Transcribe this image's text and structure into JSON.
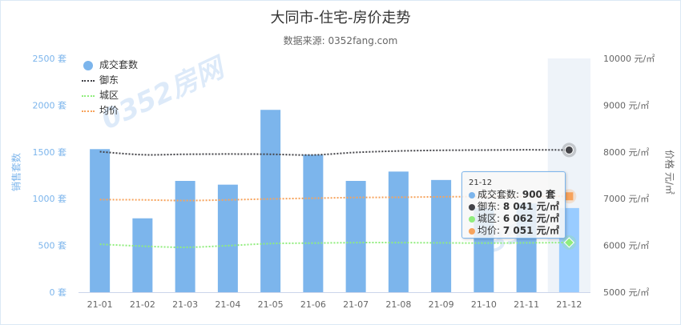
{
  "header": {
    "title": "大同市-住宅-房价走势",
    "subtitle": "数据来源: 0352fang.com"
  },
  "watermark": "0352房网",
  "legend": [
    {
      "label": "成交套数",
      "symbol": "circle",
      "color": "#7cb5ec"
    },
    {
      "label": "御东",
      "symbol": "dotted-line",
      "color": "#434348"
    },
    {
      "label": "城区",
      "symbol": "dotted-line",
      "color": "#90ed7d"
    },
    {
      "label": "均价",
      "symbol": "dotted-line",
      "color": "#f7a35c"
    }
  ],
  "axes": {
    "left_title": "销售套数",
    "right_title": "价格 元/㎡",
    "left_ticks": [
      "0 套",
      "500 套",
      "1000 套",
      "1500 套",
      "2000 套",
      "2500 套"
    ],
    "right_ticks": [
      "5000 元/㎡",
      "6000 元/㎡",
      "7000 元/㎡",
      "8000 元/㎡",
      "9000 元/㎡",
      "10000 元/㎡"
    ]
  },
  "tooltip": {
    "header": "21-12",
    "rows": [
      {
        "label": "成交套数: ",
        "value": "900 套",
        "color": "#7cb5ec"
      },
      {
        "label": "御东: ",
        "value": "8 041 元/㎡",
        "color": "#434348"
      },
      {
        "label": "城区: ",
        "value": "6 062 元/㎡",
        "color": "#90ed7d"
      },
      {
        "label": "均价: ",
        "value": "7 051 元/㎡",
        "color": "#f7a35c"
      }
    ]
  },
  "colors": {
    "bar": "#7cb5ec",
    "bar_hover": "#99ccff",
    "highlight_band": "#eef3f9",
    "yudong": "#434348",
    "chengqu": "#90ed7d",
    "avg": "#f7a35c",
    "left_axis": "#7cb5ec"
  },
  "chart_data": {
    "type": "bar",
    "title": "大同市-住宅-房价走势",
    "subtitle": "数据来源: 0352fang.com",
    "categories": [
      "21-01",
      "21-02",
      "21-03",
      "21-04",
      "21-05",
      "21-06",
      "21-07",
      "21-08",
      "21-09",
      "21-10",
      "21-11",
      "21-12"
    ],
    "series": [
      {
        "name": "成交套数",
        "type": "bar",
        "axis": "left",
        "unit": "套",
        "values": [
          1530,
          790,
          1190,
          1150,
          1950,
          1470,
          1190,
          1290,
          1200,
          900,
          950,
          900
        ]
      },
      {
        "name": "御东",
        "type": "line",
        "axis": "right",
        "unit": "元/㎡",
        "values": [
          8005,
          7940,
          7950,
          7955,
          7950,
          7935,
          7990,
          8020,
          8035,
          8040,
          8045,
          8041
        ]
      },
      {
        "name": "城区",
        "type": "line",
        "axis": "right",
        "unit": "元/㎡",
        "values": [
          6025,
          5985,
          5960,
          5995,
          6040,
          6050,
          6060,
          6060,
          6055,
          6050,
          6055,
          6062
        ]
      },
      {
        "name": "均价",
        "type": "line",
        "axis": "right",
        "unit": "元/㎡",
        "values": [
          6980,
          6975,
          6960,
          6975,
          6995,
          7010,
          7025,
          7030,
          7040,
          7045,
          7048,
          7051
        ]
      }
    ],
    "xlabel": "",
    "ylabel": "销售套数",
    "ylabel_right": "价格 元/㎡",
    "ylim": [
      0,
      2500
    ],
    "ylim_right": [
      5000,
      10000
    ],
    "grid": false,
    "legend_position": "top-left-inside",
    "highlighted_category": "21-12"
  }
}
